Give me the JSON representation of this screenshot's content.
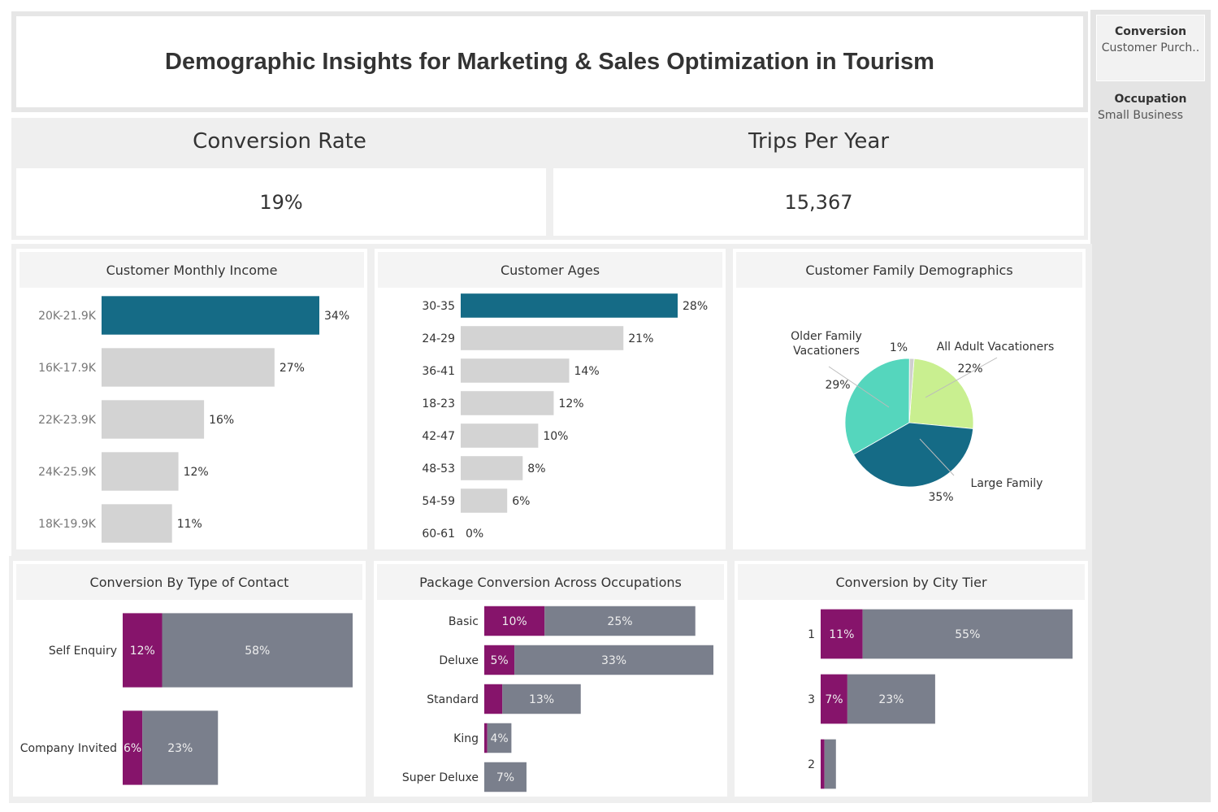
{
  "dashboard": {
    "title": "Demographic Insights for Marketing & Sales Optimization in Tourism"
  },
  "kpis": {
    "conversion_rate_label": "Conversion Rate",
    "conversion_rate_value": "19%",
    "trips_label": "Trips Per Year",
    "trips_value": "15,367"
  },
  "filters": {
    "conversion_title": "Conversion",
    "conversion_value": "Customer Purch..",
    "occupation_title": "Occupation",
    "occupation_value": "Small Business"
  },
  "colors": {
    "highlight": "#156b86",
    "bar_grey": "#d3d3d3",
    "purchase": "#86146b",
    "not_purchase": "#7a7f8c",
    "pie_large_family": "#156b86",
    "pie_older_family": "#55d6bd",
    "pie_all_adult": "#c9ef90",
    "pie_other": "#cfcfcf"
  },
  "chart_data": [
    {
      "id": "income",
      "type": "bar",
      "title": "Customer Monthly Income",
      "categories": [
        "20K-21.9K",
        "16K-17.9K",
        "22K-23.9K",
        "24K-25.9K",
        "18K-19.9K"
      ],
      "values": [
        34,
        27,
        16,
        12,
        11
      ],
      "labels": [
        "34%",
        "27%",
        "16%",
        "12%",
        "11%"
      ],
      "highlight_index": 0
    },
    {
      "id": "ages",
      "type": "bar",
      "title": "Customer Ages",
      "categories": [
        "30-35",
        "24-29",
        "36-41",
        "18-23",
        "42-47",
        "48-53",
        "54-59",
        "60-61"
      ],
      "values": [
        28,
        21,
        14,
        12,
        10,
        8,
        6,
        0
      ],
      "labels": [
        "28%",
        "21%",
        "14%",
        "12%",
        "10%",
        "8%",
        "6%",
        "0%"
      ],
      "highlight_index": 0
    },
    {
      "id": "family",
      "type": "pie",
      "title": "Customer Family Demographics",
      "slices": [
        {
          "name": "All Adult Vacationers",
          "value": 22,
          "label": "22%"
        },
        {
          "name": "Large Family",
          "value": 35,
          "label": "35%"
        },
        {
          "name": "Older Family Vacationers",
          "value": 29,
          "label": "29%"
        },
        {
          "name": "",
          "value": 1,
          "label": "1%"
        }
      ],
      "label_older_line1": "Older Family",
      "label_older_line2": "Vacationers"
    },
    {
      "id": "contact",
      "type": "bar",
      "stacked": true,
      "title": "Conversion By Type of Contact",
      "categories": [
        "Self Enquiry",
        "Company Invited"
      ],
      "series": [
        {
          "values": [
            12,
            6
          ],
          "labels": [
            "12%",
            "6%"
          ]
        },
        {
          "values": [
            58,
            23
          ],
          "labels": [
            "58%",
            "23%"
          ]
        }
      ]
    },
    {
      "id": "package",
      "type": "bar",
      "stacked": true,
      "title": "Package Conversion Across Occupations",
      "categories": [
        "Basic",
        "Deluxe",
        "Standard",
        "King",
        "Super Deluxe"
      ],
      "series": [
        {
          "values": [
            10,
            5,
            3,
            0.5,
            0
          ],
          "labels": [
            "10%",
            "5%",
            "",
            "",
            ""
          ]
        },
        {
          "values": [
            25,
            33,
            13,
            4,
            7
          ],
          "labels": [
            "25%",
            "33%",
            "13%",
            "4%",
            "7%"
          ]
        }
      ]
    },
    {
      "id": "city",
      "type": "bar",
      "stacked": true,
      "title": "Conversion by City Tier",
      "categories": [
        "1",
        "3",
        "2"
      ],
      "series": [
        {
          "values": [
            11,
            7,
            1
          ],
          "labels": [
            "11%",
            "7%",
            ""
          ]
        },
        {
          "values": [
            55,
            23,
            3
          ],
          "labels": [
            "55%",
            "23%",
            ""
          ]
        }
      ]
    }
  ]
}
